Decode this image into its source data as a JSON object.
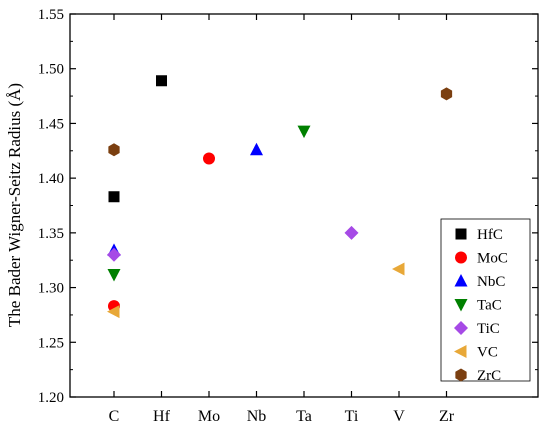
{
  "chart_data": {
    "type": "scatter",
    "title": "",
    "xlabel": "",
    "ylabel": "The Bader Wigner-Seitz Radius (Å)",
    "categories": [
      "C",
      "Hf",
      "Mo",
      "Nb",
      "Ta",
      "Ti",
      "V",
      "Zr"
    ],
    "ylim": [
      1.2,
      1.55
    ],
    "yticks": [
      "1.20",
      "1.25",
      "1.30",
      "1.35",
      "1.40",
      "1.45",
      "1.50",
      "1.55"
    ],
    "grid": false,
    "legend_position": "bottom-right",
    "series": [
      {
        "name": "HfC",
        "marker": "square",
        "color": "#000000",
        "points": [
          {
            "x": "C",
            "y": 1.383
          },
          {
            "x": "Hf",
            "y": 1.489
          }
        ]
      },
      {
        "name": "MoC",
        "marker": "circle",
        "color": "#ff0000",
        "points": [
          {
            "x": "C",
            "y": 1.283
          },
          {
            "x": "Mo",
            "y": 1.418
          }
        ]
      },
      {
        "name": "NbC",
        "marker": "triangle-up",
        "color": "#0000ff",
        "points": [
          {
            "x": "C",
            "y": 1.334
          },
          {
            "x": "Nb",
            "y": 1.426
          }
        ]
      },
      {
        "name": "TaC",
        "marker": "triangle-down",
        "color": "#008000",
        "points": [
          {
            "x": "C",
            "y": 1.312
          },
          {
            "x": "Ta",
            "y": 1.443
          }
        ]
      },
      {
        "name": "TiC",
        "marker": "diamond",
        "color": "#a64ae6",
        "points": [
          {
            "x": "C",
            "y": 1.33
          },
          {
            "x": "Ti",
            "y": 1.35
          }
        ]
      },
      {
        "name": "VC",
        "marker": "triangle-left",
        "color": "#e8a838",
        "points": [
          {
            "x": "C",
            "y": 1.278
          },
          {
            "x": "V",
            "y": 1.317
          }
        ]
      },
      {
        "name": "ZrC",
        "marker": "hexagon",
        "color": "#7b3f10",
        "points": [
          {
            "x": "C",
            "y": 1.426
          },
          {
            "x": "Zr",
            "y": 1.477
          }
        ]
      }
    ]
  }
}
